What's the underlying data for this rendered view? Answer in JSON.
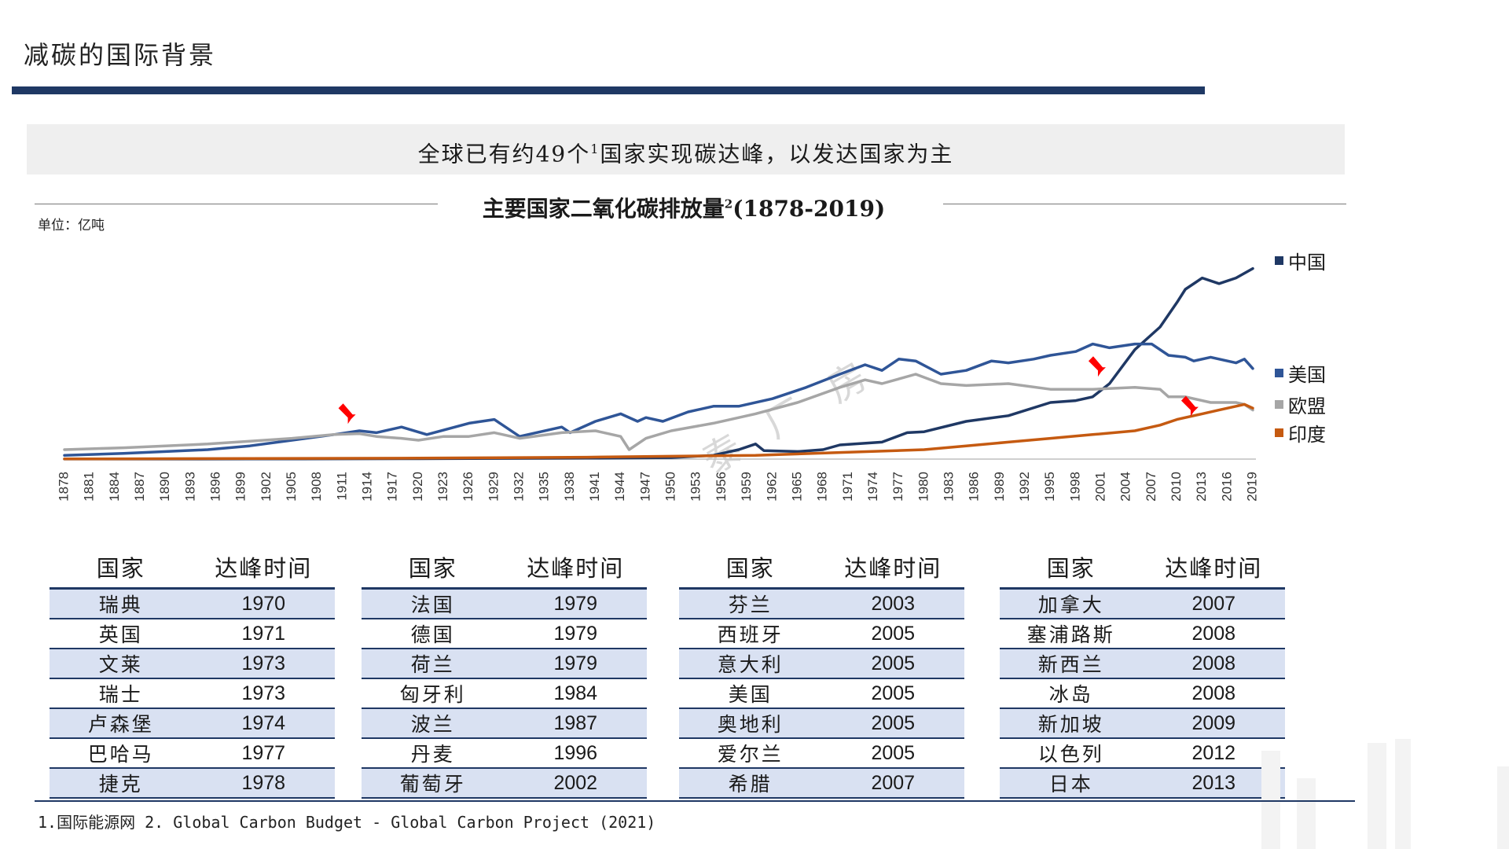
{
  "page": {
    "title": "减碳的国际背景"
  },
  "headline": {
    "before": "全球已有约49个",
    "sup": "1",
    "after": "国家实现碳达峰，以发达国家为主"
  },
  "chart_data": {
    "type": "line",
    "title": "主要国家二氧化碳排放量",
    "title_sup": "2",
    "title_years": "(1878-2019)",
    "unit_label": "单位：亿吨",
    "x_tick_labels": [
      "1878",
      "1881",
      "1884",
      "1887",
      "1890",
      "1893",
      "1896",
      "1899",
      "1902",
      "1905",
      "1908",
      "1911",
      "1914",
      "1917",
      "1920",
      "1923",
      "1926",
      "1929",
      "1932",
      "1935",
      "1938",
      "1941",
      "1944",
      "1947",
      "1950",
      "1953",
      "1956",
      "1959",
      "1962",
      "1965",
      "1968",
      "1971",
      "1974",
      "1977",
      "1980",
      "1983",
      "1986",
      "1989",
      "1992",
      "1995",
      "1998",
      "2001",
      "2004",
      "2007",
      "2010",
      "2013",
      "2016",
      "2019"
    ],
    "xlim": [
      1878,
      2019
    ],
    "ylim": [
      0,
      110
    ],
    "legend_position": "right",
    "series": [
      {
        "name": "中国",
        "color": "#1f3864",
        "points": [
          [
            1878,
            0.05
          ],
          [
            1900,
            0.1
          ],
          [
            1920,
            0.2
          ],
          [
            1940,
            0.5
          ],
          [
            1950,
            0.8
          ],
          [
            1955,
            2
          ],
          [
            1958,
            5
          ],
          [
            1960,
            8
          ],
          [
            1961,
            4.5
          ],
          [
            1965,
            4
          ],
          [
            1968,
            5
          ],
          [
            1970,
            7.5
          ],
          [
            1975,
            9
          ],
          [
            1978,
            14
          ],
          [
            1980,
            14.5
          ],
          [
            1985,
            20
          ],
          [
            1990,
            23
          ],
          [
            1995,
            30
          ],
          [
            1998,
            31
          ],
          [
            2000,
            33
          ],
          [
            2002,
            40
          ],
          [
            2005,
            58
          ],
          [
            2008,
            70
          ],
          [
            2010,
            83
          ],
          [
            2011,
            90
          ],
          [
            2013,
            96
          ],
          [
            2015,
            93
          ],
          [
            2017,
            96
          ],
          [
            2019,
            101
          ]
        ]
      },
      {
        "name": "美国",
        "color": "#2f5597",
        "points": [
          [
            1878,
            2
          ],
          [
            1885,
            3
          ],
          [
            1890,
            4
          ],
          [
            1895,
            5
          ],
          [
            1900,
            7
          ],
          [
            1905,
            10
          ],
          [
            1910,
            13
          ],
          [
            1913,
            15
          ],
          [
            1915,
            14
          ],
          [
            1918,
            17
          ],
          [
            1921,
            13
          ],
          [
            1926,
            19
          ],
          [
            1929,
            21
          ],
          [
            1932,
            12
          ],
          [
            1937,
            17
          ],
          [
            1938,
            14
          ],
          [
            1941,
            20
          ],
          [
            1944,
            24
          ],
          [
            1946,
            20
          ],
          [
            1947,
            22
          ],
          [
            1949,
            20
          ],
          [
            1952,
            25
          ],
          [
            1955,
            28
          ],
          [
            1958,
            28
          ],
          [
            1962,
            32
          ],
          [
            1966,
            38
          ],
          [
            1970,
            45
          ],
          [
            1973,
            50
          ],
          [
            1975,
            47
          ],
          [
            1977,
            53
          ],
          [
            1979,
            52
          ],
          [
            1982,
            45
          ],
          [
            1985,
            47
          ],
          [
            1988,
            52
          ],
          [
            1990,
            51
          ],
          [
            1993,
            53
          ],
          [
            1995,
            55
          ],
          [
            1998,
            57
          ],
          [
            2000,
            61
          ],
          [
            2002,
            59
          ],
          [
            2005,
            61
          ],
          [
            2007,
            61
          ],
          [
            2009,
            55
          ],
          [
            2011,
            54
          ],
          [
            2012,
            52
          ],
          [
            2014,
            54
          ],
          [
            2017,
            51
          ],
          [
            2018,
            53
          ],
          [
            2019,
            48
          ]
        ]
      },
      {
        "name": "欧盟",
        "color": "#a6a6a6",
        "points": [
          [
            1878,
            5
          ],
          [
            1885,
            6
          ],
          [
            1890,
            7
          ],
          [
            1895,
            8
          ],
          [
            1900,
            9.5
          ],
          [
            1905,
            11
          ],
          [
            1910,
            13
          ],
          [
            1913,
            13.5
          ],
          [
            1915,
            12
          ],
          [
            1918,
            11
          ],
          [
            1920,
            10
          ],
          [
            1923,
            12
          ],
          [
            1926,
            12
          ],
          [
            1929,
            14
          ],
          [
            1932,
            11
          ],
          [
            1937,
            14
          ],
          [
            1941,
            15
          ],
          [
            1944,
            12
          ],
          [
            1945,
            5
          ],
          [
            1947,
            11
          ],
          [
            1950,
            15
          ],
          [
            1955,
            19
          ],
          [
            1960,
            24
          ],
          [
            1965,
            30
          ],
          [
            1970,
            38
          ],
          [
            1973,
            42
          ],
          [
            1975,
            40
          ],
          [
            1979,
            45
          ],
          [
            1982,
            40
          ],
          [
            1985,
            39
          ],
          [
            1990,
            40
          ],
          [
            1995,
            37
          ],
          [
            2000,
            37
          ],
          [
            2005,
            38
          ],
          [
            2008,
            37
          ],
          [
            2009,
            33
          ],
          [
            2011,
            33
          ],
          [
            2014,
            30
          ],
          [
            2017,
            30
          ],
          [
            2018,
            29
          ],
          [
            2019,
            26
          ]
        ]
      },
      {
        "name": "印度",
        "color": "#c55a11",
        "points": [
          [
            1878,
            0.1
          ],
          [
            1900,
            0.3
          ],
          [
            1920,
            0.5
          ],
          [
            1940,
            1
          ],
          [
            1950,
            1.5
          ],
          [
            1960,
            2
          ],
          [
            1970,
            3.5
          ],
          [
            1980,
            5
          ],
          [
            1985,
            7
          ],
          [
            1990,
            9
          ],
          [
            1995,
            11
          ],
          [
            2000,
            13
          ],
          [
            2005,
            15
          ],
          [
            2008,
            18
          ],
          [
            2010,
            21
          ],
          [
            2013,
            24
          ],
          [
            2015,
            26
          ],
          [
            2017,
            28
          ],
          [
            2018,
            29
          ],
          [
            2019,
            27
          ]
        ]
      }
    ],
    "peak_markers": [
      {
        "x": 1912,
        "y": 17
      },
      {
        "x": 2001,
        "y": 42
      },
      {
        "x": 2012,
        "y": 21
      }
    ],
    "watermark": "泰 厂 房"
  },
  "peak_tables": [
    {
      "header_country": "国家",
      "header_year": "达峰时间",
      "rows": [
        [
          "瑞典",
          "1970"
        ],
        [
          "英国",
          "1971"
        ],
        [
          "文莱",
          "1973"
        ],
        [
          "瑞士",
          "1973"
        ],
        [
          "卢森堡",
          "1974"
        ],
        [
          "巴哈马",
          "1977"
        ],
        [
          "捷克",
          "1978"
        ]
      ]
    },
    {
      "header_country": "国家",
      "header_year": "达峰时间",
      "rows": [
        [
          "法国",
          "1979"
        ],
        [
          "德国",
          "1979"
        ],
        [
          "荷兰",
          "1979"
        ],
        [
          "匈牙利",
          "1984"
        ],
        [
          "波兰",
          "1987"
        ],
        [
          "丹麦",
          "1996"
        ],
        [
          "葡萄牙",
          "2002"
        ]
      ]
    },
    {
      "header_country": "国家",
      "header_year": "达峰时间",
      "rows": [
        [
          "芬兰",
          "2003"
        ],
        [
          "西班牙",
          "2005"
        ],
        [
          "意大利",
          "2005"
        ],
        [
          "美国",
          "2005"
        ],
        [
          "奥地利",
          "2005"
        ],
        [
          "爱尔兰",
          "2005"
        ],
        [
          "希腊",
          "2007"
        ]
      ]
    },
    {
      "header_country": "国家",
      "header_year": "达峰时间",
      "rows": [
        [
          "加拿大",
          "2007"
        ],
        [
          "塞浦路斯",
          "2008"
        ],
        [
          "新西兰",
          "2008"
        ],
        [
          "冰岛",
          "2008"
        ],
        [
          "新加坡",
          "2009"
        ],
        [
          "以色列",
          "2012"
        ],
        [
          "日本",
          "2013"
        ]
      ]
    }
  ],
  "footnote": "1.国际能源网 2. Global Carbon Budget - Global Carbon Project (2021)"
}
